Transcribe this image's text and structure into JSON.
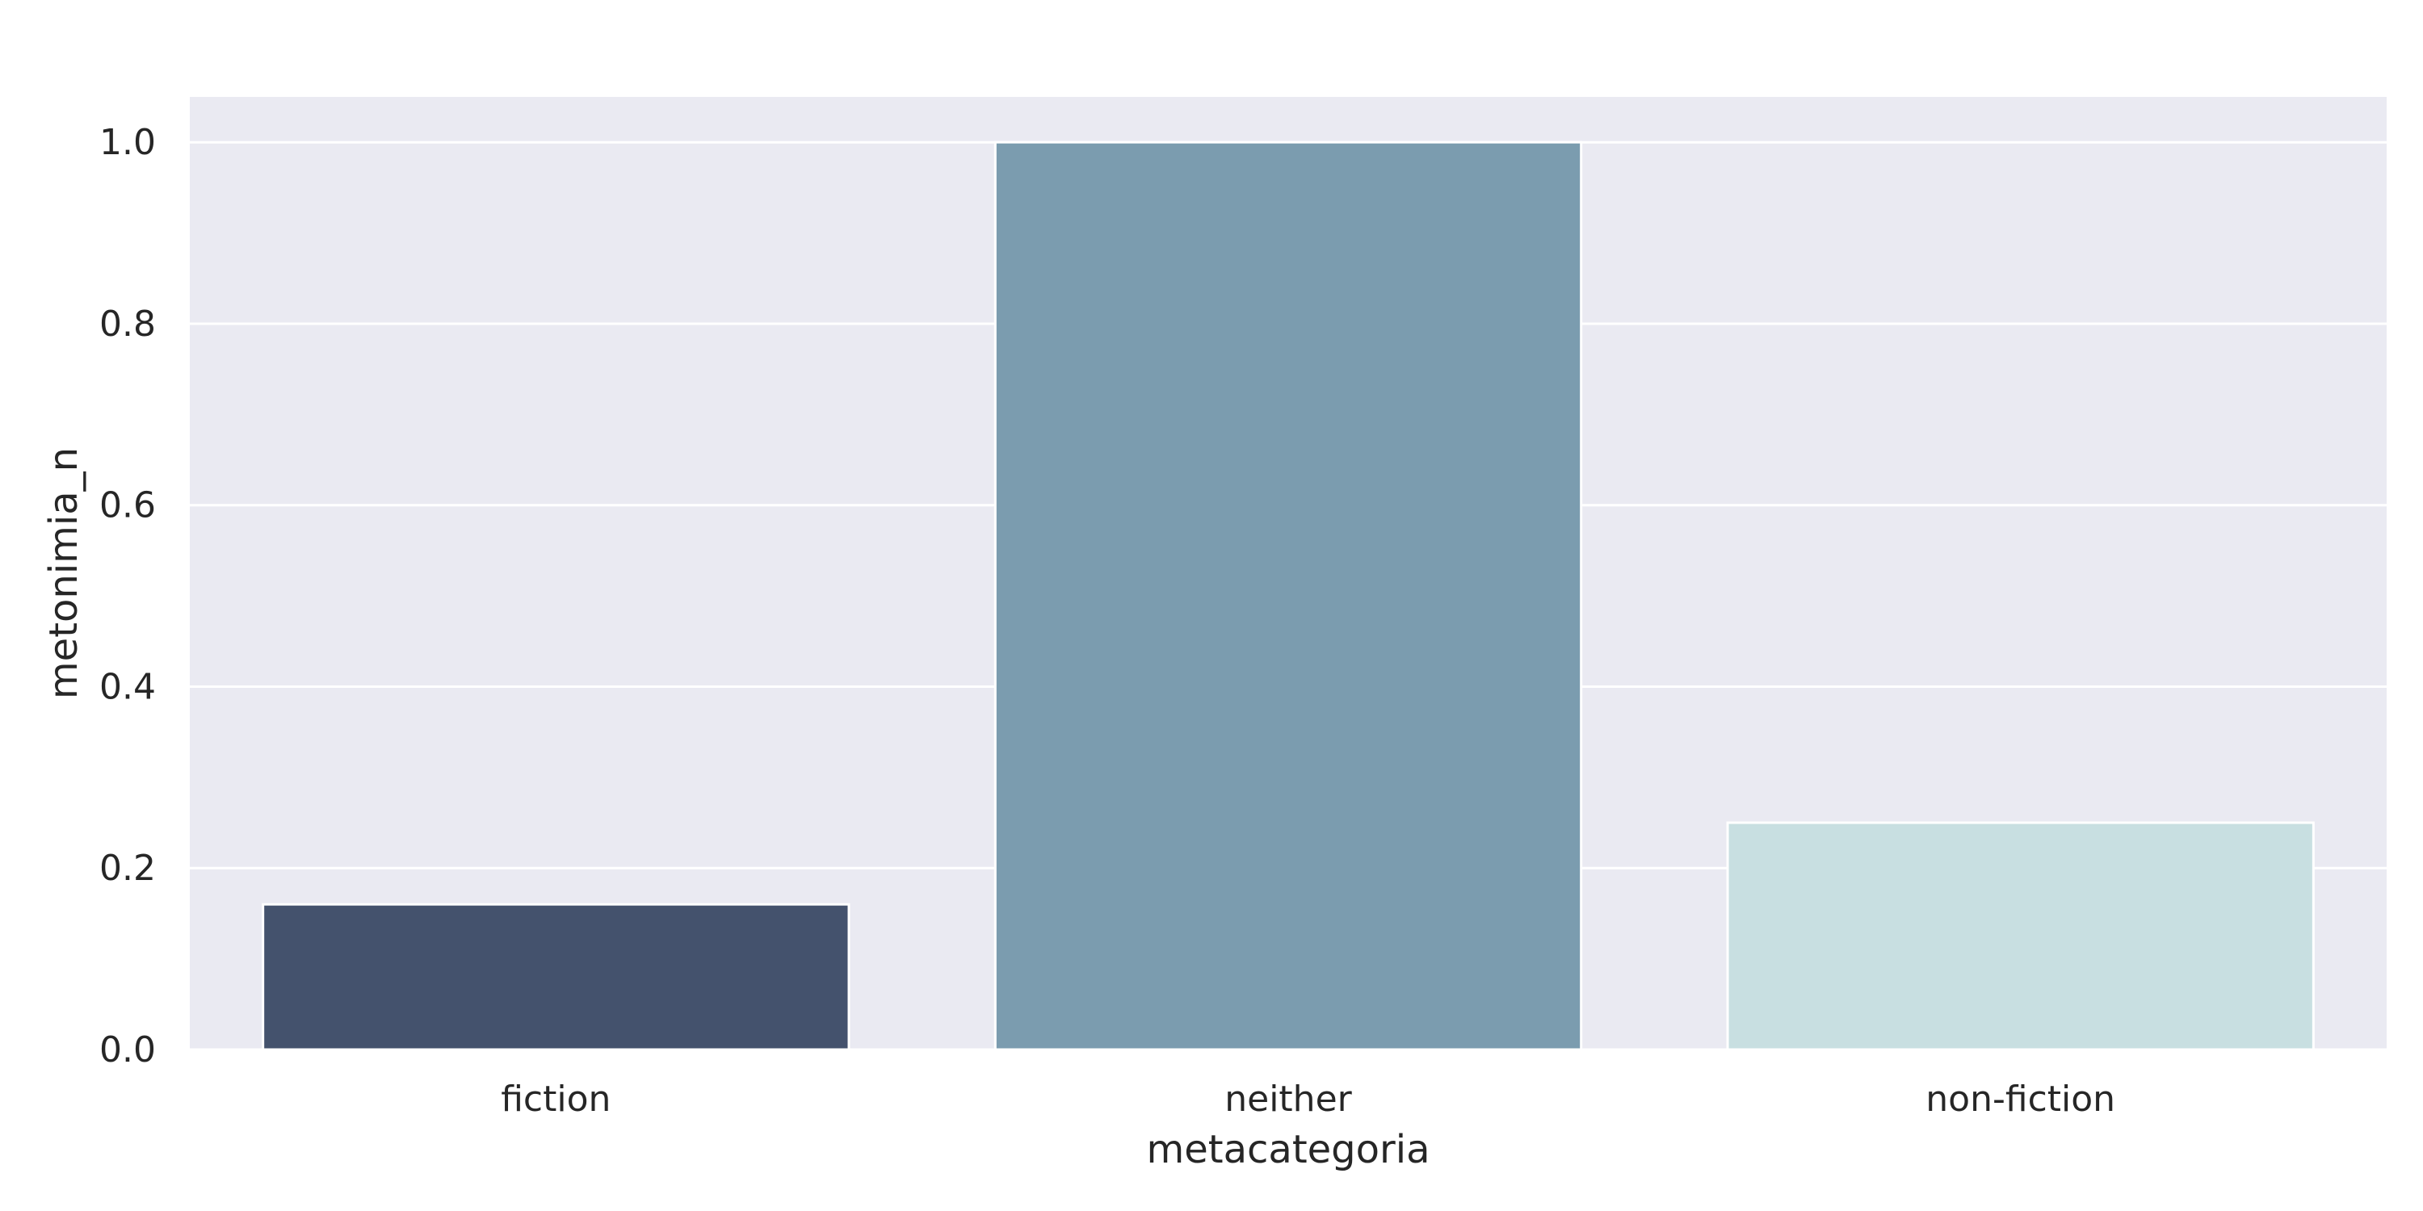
{
  "chart_data": {
    "type": "bar",
    "categories": [
      "fiction",
      "neither",
      "non-fiction"
    ],
    "values": [
      0.16,
      1.0,
      0.25
    ],
    "colors": [
      "#44526d",
      "#7b9caf",
      "#c8dfe1"
    ],
    "xlabel": "metacategoria",
    "ylabel": "metonimia_n",
    "ylim": [
      0,
      1.05
    ],
    "yticks": [
      0.0,
      0.2,
      0.4,
      0.6,
      0.8,
      1.0
    ],
    "ytick_labels": [
      "0.0",
      "0.2",
      "0.4",
      "0.6",
      "0.8",
      "1.0"
    ],
    "grid": true,
    "background": "#eaeaf2"
  }
}
